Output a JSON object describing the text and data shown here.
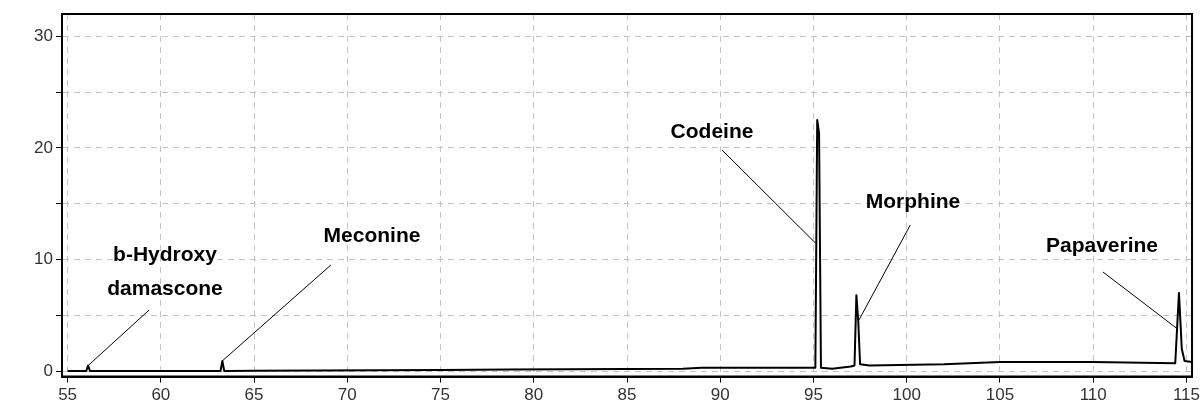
{
  "chart_data": {
    "type": "line",
    "x": [
      55,
      56.0,
      56.1,
      56.2,
      63.2,
      63.3,
      63.4,
      75,
      88,
      89,
      95.1,
      95.2,
      95.3,
      95.4,
      96,
      97,
      97.2,
      97.3,
      97.4,
      97.5,
      98,
      102,
      105,
      110,
      114.4,
      114.6,
      114.75,
      114.9,
      115.3
    ],
    "series": [
      {
        "color": "#000000",
        "values": [
          0,
          0,
          0.5,
          0,
          0,
          0.9,
          0,
          0.1,
          0.2,
          0.3,
          0.3,
          22.5,
          21.3,
          0.3,
          0.2,
          0.4,
          0.5,
          6.8,
          4.5,
          0.6,
          0.5,
          0.6,
          0.8,
          0.8,
          0.7,
          7.0,
          2,
          0.9,
          0.8
        ]
      }
    ],
    "xlim": [
      54.7,
      115.3
    ],
    "xticks": [
      55,
      60,
      65,
      70,
      75,
      80,
      85,
      90,
      95,
      100,
      105,
      110,
      115
    ],
    "ylim": [
      -0.5,
      32
    ],
    "yticks": [
      0,
      {
        "value": 5,
        "label": null
      },
      10,
      {
        "value": 15,
        "label": null
      },
      20,
      {
        "value": 25,
        "label": null
      },
      30
    ],
    "grid": true,
    "marker": "none",
    "line_style": "solid",
    "legend": false,
    "annotations": [
      {
        "text": "b-Hydroxy damascone",
        "x": 56.1,
        "y": 0.5
      },
      {
        "text": "Meconine",
        "x": 63.3,
        "y": 0.9
      },
      {
        "text": "Codeine",
        "x": 95.15,
        "y": 11.4
      },
      {
        "text": "Morphine",
        "x": 97.4,
        "y": 4.5
      },
      {
        "text": "Papaverine",
        "x": 114.5,
        "y": 3.8
      }
    ]
  }
}
